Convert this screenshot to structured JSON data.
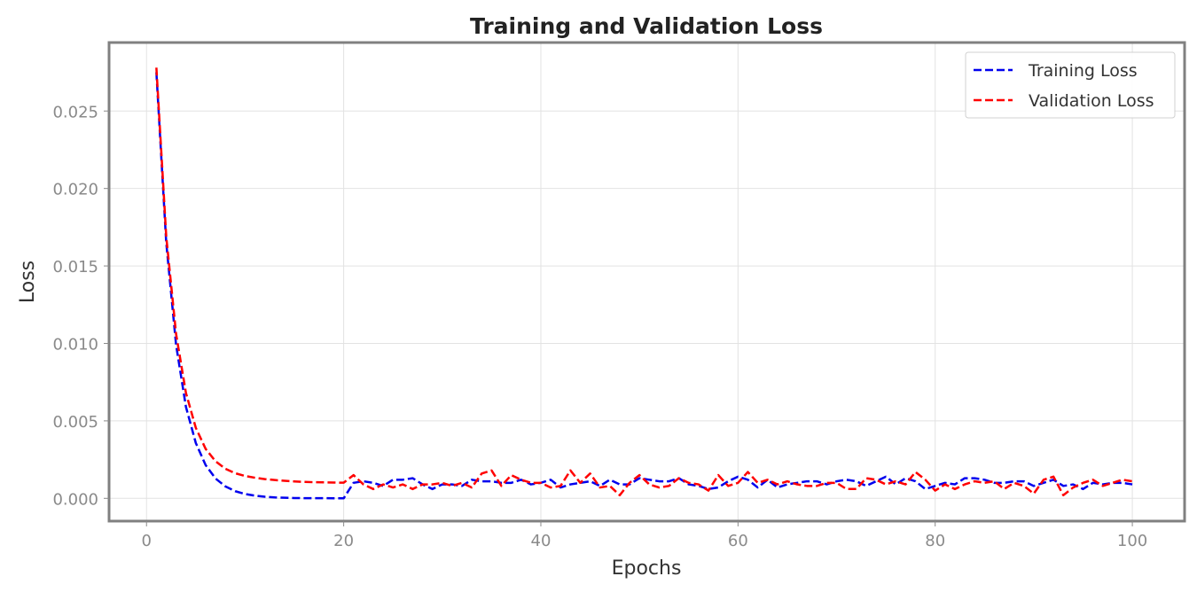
{
  "chart_data": {
    "type": "line",
    "title": "Training and Validation Loss",
    "xlabel": "Epochs",
    "ylabel": "Loss",
    "xlim": [
      -3.8,
      105.3
    ],
    "ylim": [
      -0.00147,
      0.02942
    ],
    "xticks": [
      0,
      20,
      40,
      60,
      80,
      100
    ],
    "xtick_labels": [
      "0",
      "20",
      "40",
      "60",
      "80",
      "100"
    ],
    "yticks": [
      0.0,
      0.005,
      0.01,
      0.015,
      0.02,
      0.025
    ],
    "ytick_labels": [
      "0.000",
      "0.005",
      "0.010",
      "0.015",
      "0.020",
      "0.025"
    ],
    "grid": true,
    "legend_position": "top-right",
    "x": [
      1,
      2,
      3,
      4,
      5,
      6,
      7,
      8,
      9,
      10,
      11,
      12,
      13,
      14,
      15,
      16,
      17,
      18,
      19,
      20,
      21,
      22,
      23,
      24,
      25,
      26,
      27,
      28,
      29,
      30,
      31,
      32,
      33,
      34,
      35,
      36,
      37,
      38,
      39,
      40,
      41,
      42,
      43,
      44,
      45,
      46,
      47,
      48,
      49,
      50,
      51,
      52,
      53,
      54,
      55,
      56,
      57,
      58,
      59,
      60,
      61,
      62,
      63,
      64,
      65,
      66,
      67,
      68,
      69,
      70,
      71,
      72,
      73,
      74,
      75,
      76,
      77,
      78,
      79,
      80,
      81,
      82,
      83,
      84,
      85,
      86,
      87,
      88,
      89,
      90,
      91,
      92,
      93,
      94,
      95,
      96,
      97,
      98,
      99,
      100
    ],
    "series": [
      {
        "name": "Training Loss",
        "color": "#0000ee",
        "values": [
          0.0275,
          0.0165,
          0.0099,
          0.0059,
          0.00357,
          0.00214,
          0.00128,
          0.00077,
          0.00046,
          0.00028,
          0.00017,
          0.0001,
          6e-05,
          4e-05,
          2e-05,
          1e-05,
          1e-05,
          1e-05,
          0.0,
          0.0,
          0.001,
          0.0011,
          0.001,
          0.0008,
          0.0012,
          0.0012,
          0.0013,
          0.0009,
          0.0006,
          0.0009,
          0.0009,
          0.0008,
          0.0012,
          0.0011,
          0.0011,
          0.001,
          0.001,
          0.0012,
          0.0009,
          0.001,
          0.0012,
          0.0007,
          0.0009,
          0.001,
          0.0011,
          0.0008,
          0.0012,
          0.0009,
          0.0009,
          0.0013,
          0.0012,
          0.0011,
          0.0011,
          0.0013,
          0.0009,
          0.0008,
          0.0006,
          0.0007,
          0.0011,
          0.0014,
          0.0012,
          0.0007,
          0.0012,
          0.0007,
          0.0009,
          0.001,
          0.0011,
          0.0011,
          0.0009,
          0.0011,
          0.0012,
          0.0011,
          0.0008,
          0.0011,
          0.0014,
          0.0009,
          0.0013,
          0.0011,
          0.0006,
          0.0008,
          0.001,
          0.0009,
          0.0013,
          0.0013,
          0.0012,
          0.001,
          0.001,
          0.0011,
          0.0011,
          0.0008,
          0.001,
          0.0012,
          0.0008,
          0.0009,
          0.0006,
          0.001,
          0.0009,
          0.001,
          0.001,
          0.0009
        ]
      },
      {
        "name": "Validation Loss",
        "color": "#ff0000",
        "values": [
          0.0278,
          0.0169,
          0.0106,
          0.0068,
          0.00455,
          0.00319,
          0.00239,
          0.00191,
          0.00162,
          0.00144,
          0.00133,
          0.00124,
          0.00118,
          0.00113,
          0.00109,
          0.00106,
          0.00104,
          0.00103,
          0.00102,
          0.00101,
          0.0015,
          0.0009,
          0.0006,
          0.0009,
          0.0007,
          0.0009,
          0.0006,
          0.0009,
          0.0009,
          0.001,
          0.0008,
          0.001,
          0.0007,
          0.0016,
          0.0018,
          0.0008,
          0.0015,
          0.0012,
          0.001,
          0.001,
          0.0007,
          0.0008,
          0.0018,
          0.001,
          0.0016,
          0.0007,
          0.0008,
          0.0002,
          0.001,
          0.0015,
          0.0009,
          0.0007,
          0.0008,
          0.0013,
          0.001,
          0.0009,
          0.0005,
          0.0015,
          0.0008,
          0.001,
          0.0017,
          0.001,
          0.0012,
          0.0009,
          0.0011,
          0.0009,
          0.0008,
          0.0008,
          0.001,
          0.001,
          0.0006,
          0.0006,
          0.0013,
          0.0012,
          0.0009,
          0.0011,
          0.0009,
          0.0017,
          0.0012,
          0.0005,
          0.0009,
          0.0006,
          0.0009,
          0.0011,
          0.001,
          0.0011,
          0.0006,
          0.001,
          0.0008,
          0.0003,
          0.0012,
          0.0014,
          0.0002,
          0.0007,
          0.001,
          0.0012,
          0.0008,
          0.001,
          0.0012,
          0.0011
        ]
      }
    ]
  }
}
